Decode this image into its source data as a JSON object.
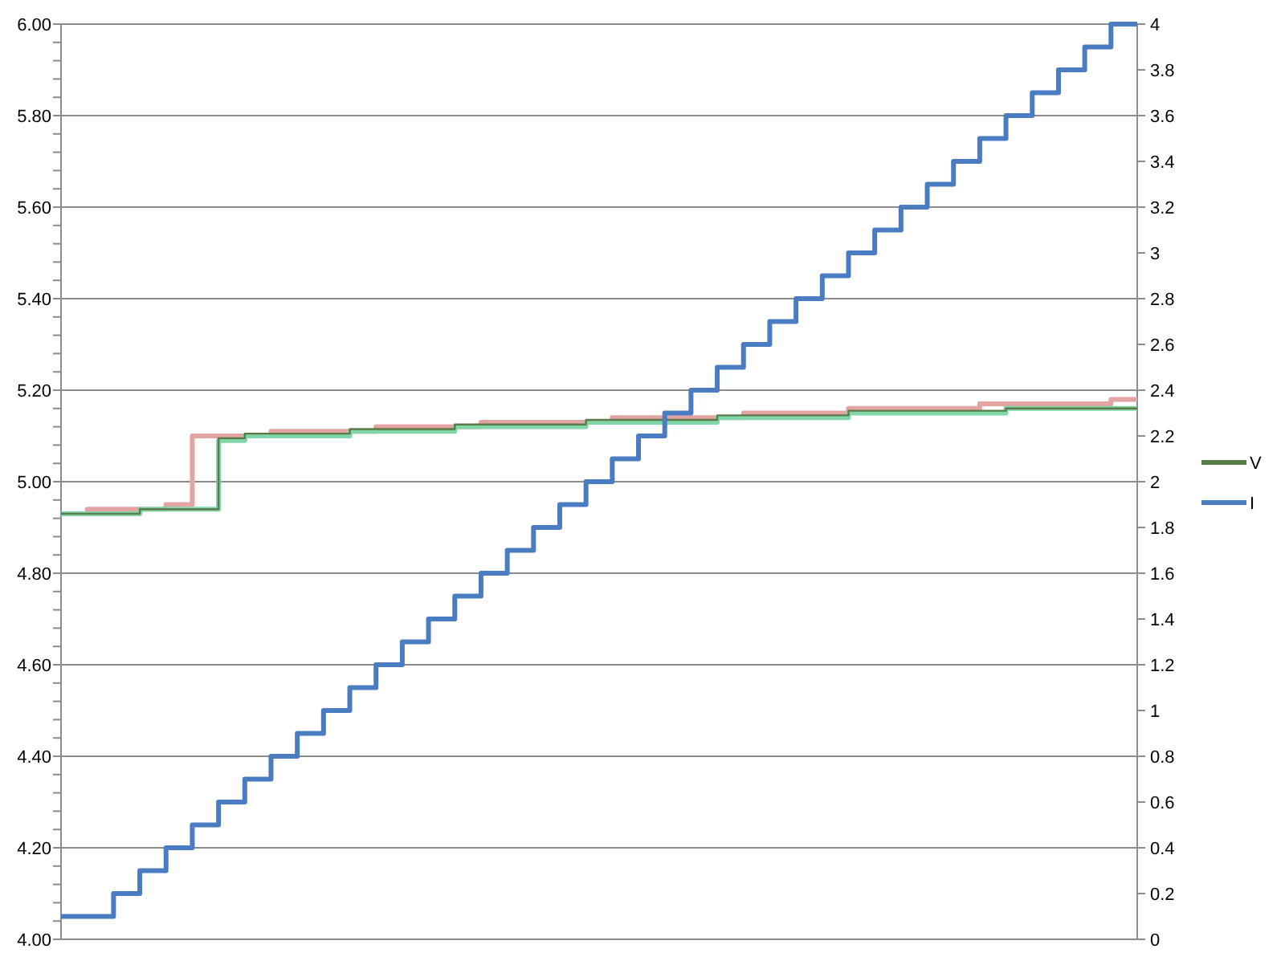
{
  "chart_data": {
    "type": "step",
    "categories": [
      null,
      null,
      null,
      null,
      null,
      null,
      null,
      null,
      null,
      null,
      null,
      null,
      null,
      null,
      null,
      null,
      null,
      null,
      null,
      null,
      null,
      null,
      null,
      null,
      null,
      null,
      null,
      null,
      null,
      null,
      null,
      null,
      null,
      null,
      null,
      null,
      null,
      null,
      null,
      null,
      null,
      null
    ],
    "series": [
      {
        "color": "#e3a3a3",
        "values": [
          4.93,
          4.94,
          4.94,
          4.94,
          4.95,
          5.1,
          5.1,
          5.1,
          5.11,
          5.11,
          5.11,
          5.11,
          5.12,
          5.12,
          5.12,
          5.12,
          5.13,
          5.13,
          5.13,
          5.13,
          5.13,
          5.14,
          5.14,
          5.14,
          5.14,
          5.14,
          5.15,
          5.15,
          5.15,
          5.15,
          5.16,
          5.16,
          5.16,
          5.16,
          5.16,
          5.17,
          5.17,
          5.17,
          5.17,
          5.17,
          5.18,
          5.18
        ]
      },
      {
        "color": "#80d6a8",
        "values": [
          4.93,
          4.93,
          4.93,
          4.94,
          4.94,
          4.94,
          5.09,
          5.1,
          5.1,
          5.1,
          5.1,
          5.11,
          5.11,
          5.11,
          5.11,
          5.12,
          5.12,
          5.12,
          5.12,
          5.12,
          5.13,
          5.13,
          5.13,
          5.13,
          5.13,
          5.14,
          5.14,
          5.14,
          5.14,
          5.14,
          5.15,
          5.15,
          5.15,
          5.15,
          5.15,
          5.15,
          5.16,
          5.16,
          5.16,
          5.16,
          5.16,
          5.16
        ]
      },
      {
        "name": "V",
        "color": "#5b7a48",
        "values": [
          4.93,
          4.93,
          4.93,
          4.94,
          4.94,
          4.94,
          5.095,
          5.105,
          5.105,
          5.105,
          5.105,
          5.115,
          5.115,
          5.115,
          5.115,
          5.125,
          5.125,
          5.125,
          5.125,
          5.125,
          5.135,
          5.135,
          5.135,
          5.135,
          5.135,
          5.145,
          5.145,
          5.145,
          5.145,
          5.145,
          5.155,
          5.155,
          5.155,
          5.155,
          5.155,
          5.155,
          5.16,
          5.16,
          5.16,
          5.16,
          5.16,
          5.16
        ]
      },
      {
        "name": "I",
        "color": "#4a7cc2",
        "axis": "y2",
        "values": [
          0.1,
          0.1,
          0.2,
          0.3,
          0.4,
          0.5,
          0.6,
          0.7,
          0.8,
          0.9,
          1.0,
          1.1,
          1.2,
          1.3,
          1.4,
          1.5,
          1.6,
          1.7,
          1.8,
          1.9,
          2.0,
          2.1,
          2.2,
          2.3,
          2.4,
          2.5,
          2.6,
          2.7,
          2.8,
          2.9,
          3.0,
          3.1,
          3.2,
          3.3,
          3.4,
          3.5,
          3.6,
          3.7,
          3.8,
          3.9,
          4.0,
          4.0
        ]
      }
    ],
    "ylim": [
      4,
      6
    ],
    "yticks": [
      {
        "value": 4,
        "label": "4.00"
      },
      {
        "value": 4.04,
        "label": null
      },
      {
        "value": 4.08,
        "label": null
      },
      {
        "value": 4.12,
        "label": null
      },
      {
        "value": 4.16,
        "label": null
      },
      {
        "value": 4.2,
        "label": "4.20"
      },
      {
        "value": 4.24,
        "label": null
      },
      {
        "value": 4.28,
        "label": null
      },
      {
        "value": 4.32,
        "label": null
      },
      {
        "value": 4.36,
        "label": null
      },
      {
        "value": 4.4,
        "label": "4.40"
      },
      {
        "value": 4.44,
        "label": null
      },
      {
        "value": 4.48,
        "label": null
      },
      {
        "value": 4.52,
        "label": null
      },
      {
        "value": 4.56,
        "label": null
      },
      {
        "value": 4.6,
        "label": "4.60"
      },
      {
        "value": 4.64,
        "label": null
      },
      {
        "value": 4.68,
        "label": null
      },
      {
        "value": 4.72,
        "label": null
      },
      {
        "value": 4.76,
        "label": null
      },
      {
        "value": 4.8,
        "label": "4.80"
      },
      {
        "value": 4.84,
        "label": null
      },
      {
        "value": 4.88,
        "label": null
      },
      {
        "value": 4.92,
        "label": null
      },
      {
        "value": 4.96,
        "label": null
      },
      {
        "value": 5,
        "label": "5.00"
      },
      {
        "value": 5.04,
        "label": null
      },
      {
        "value": 5.08,
        "label": null
      },
      {
        "value": 5.12,
        "label": null
      },
      {
        "value": 5.16,
        "label": null
      },
      {
        "value": 5.2,
        "label": "5.20"
      },
      {
        "value": 5.24,
        "label": null
      },
      {
        "value": 5.28,
        "label": null
      },
      {
        "value": 5.32,
        "label": null
      },
      {
        "value": 5.36,
        "label": null
      },
      {
        "value": 5.4,
        "label": "5.40"
      },
      {
        "value": 5.44,
        "label": null
      },
      {
        "value": 5.48,
        "label": null
      },
      {
        "value": 5.52,
        "label": null
      },
      {
        "value": 5.56,
        "label": null
      },
      {
        "value": 5.6,
        "label": "5.60"
      },
      {
        "value": 5.64,
        "label": null
      },
      {
        "value": 5.68,
        "label": null
      },
      {
        "value": 5.72,
        "label": null
      },
      {
        "value": 5.76,
        "label": null
      },
      {
        "value": 5.8,
        "label": "5.80"
      },
      {
        "value": 5.84,
        "label": null
      },
      {
        "value": 5.88,
        "label": null
      },
      {
        "value": 5.92,
        "label": null
      },
      {
        "value": 5.96,
        "label": null
      },
      {
        "value": 6,
        "label": "6.00"
      }
    ],
    "y2lim": [
      0,
      4
    ],
    "y2ticks": [
      0,
      0.2,
      0.4,
      0.6,
      0.8,
      1,
      1.2,
      1.4,
      1.6,
      1.8,
      2,
      2.2,
      2.4,
      2.6,
      2.8,
      3,
      3.2,
      3.4,
      3.6,
      3.8,
      4
    ],
    "grid": "y",
    "legend": "right",
    "line_style": "solid",
    "marker": "none"
  }
}
